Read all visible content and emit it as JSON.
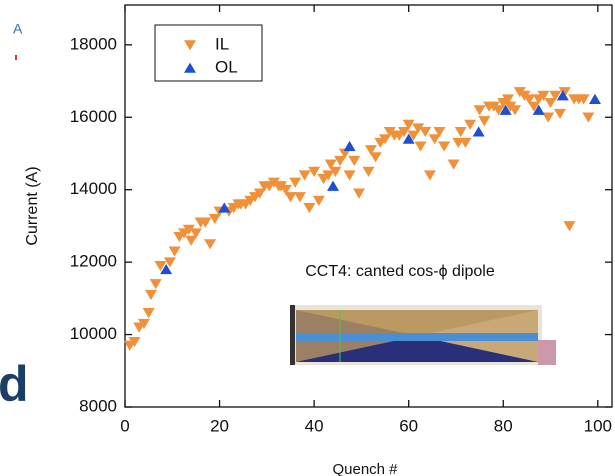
{
  "fragments": {
    "top_left": "A",
    "bottom_left": "d"
  },
  "chart_data": {
    "type": "scatter",
    "x_label": "Quench #",
    "y_label": "Current (A)",
    "annotation": "CCT4: canted cos-ϕ dipole",
    "xlim": [
      0,
      103
    ],
    "ylim": [
      8000,
      19100
    ],
    "xticks": [
      0,
      20,
      40,
      60,
      80,
      100
    ],
    "yticks": [
      8000,
      10000,
      12000,
      14000,
      16000,
      18000
    ],
    "legend": "upper left",
    "series": [
      {
        "name": "IL",
        "color": "#f0913a",
        "marker": "triangle-down",
        "x": [
          1,
          2,
          3,
          4,
          5,
          5.5,
          6.5,
          7.5,
          9.5,
          10.5,
          11.5,
          12.5,
          13.5,
          14,
          15,
          16,
          17,
          18,
          19,
          20,
          22,
          23,
          24,
          24.5,
          25.5,
          26.5,
          27.5,
          28.5,
          29.5,
          30.5,
          31.5,
          32.5,
          33,
          34,
          35,
          36,
          37,
          38,
          39,
          40,
          41,
          42,
          43,
          43.5,
          44.5,
          45.5,
          46.5,
          47.5,
          48.5,
          49.5,
          51.5,
          52,
          53,
          54,
          55,
          56,
          57,
          58,
          59,
          60,
          61,
          62,
          62.5,
          63.5,
          64.5,
          65.5,
          66.5,
          67.5,
          69.5,
          70.5,
          71,
          72,
          73,
          75,
          76,
          77,
          78,
          79,
          80,
          81,
          81.5,
          82.5,
          83.5,
          84.5,
          85.5,
          86.5,
          87.5,
          88.5,
          89.5,
          90,
          91,
          92,
          93,
          94,
          95,
          96,
          97,
          98
        ],
        "values": [
          9700,
          9800,
          10200,
          10300,
          10600,
          11100,
          11400,
          11900,
          12000,
          12300,
          12700,
          12800,
          12900,
          12600,
          12800,
          13100,
          13100,
          12500,
          13200,
          13400,
          13400,
          13500,
          13600,
          13600,
          13600,
          13700,
          13800,
          13900,
          14100,
          14100,
          14200,
          14100,
          14100,
          14000,
          13800,
          14200,
          13800,
          14400,
          13500,
          14500,
          13700,
          14300,
          14400,
          14700,
          14500,
          14800,
          15000,
          14400,
          14800,
          13900,
          14500,
          15100,
          14900,
          15300,
          15400,
          15600,
          15500,
          15500,
          15600,
          15800,
          15500,
          15700,
          15200,
          15600,
          14400,
          15400,
          15600,
          15200,
          14700,
          15300,
          15600,
          15300,
          15800,
          16200,
          15900,
          16300,
          16300,
          16200,
          16400,
          16500,
          16300,
          16200,
          16700,
          16600,
          16500,
          16300,
          16500,
          16600,
          16000,
          16400,
          16600,
          16100,
          16700,
          13000,
          16500,
          16500,
          16500,
          16000
        ]
      },
      {
        "name": "OL",
        "color": "#1f4fd1",
        "marker": "triangle-up",
        "x": [
          8.7,
          21,
          44,
          47.5,
          60,
          74.8,
          80.5,
          87.5,
          92.6,
          99.4
        ],
        "values": [
          11800,
          13500,
          14100,
          15200,
          15400,
          15600,
          16200,
          16200,
          16600,
          16500
        ]
      }
    ]
  }
}
